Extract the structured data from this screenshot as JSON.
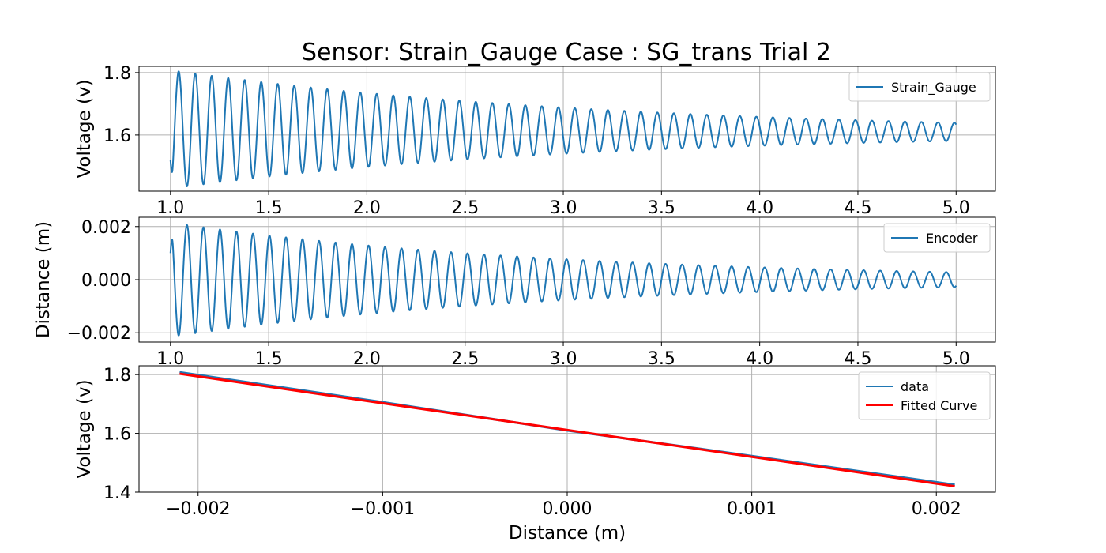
{
  "figure": {
    "title": "Sensor: Strain_Gauge Case : SG_trans Trial 2"
  },
  "chart_data": [
    {
      "type": "line",
      "ylabel": "Voltage (v)",
      "xlabel": "",
      "xlim": [
        0.84,
        5.2
      ],
      "ylim": [
        1.42,
        1.82
      ],
      "xticks": [
        "1.0",
        "1.5",
        "2.0",
        "2.5",
        "3.0",
        "3.5",
        "4.0",
        "4.5",
        "5.0"
      ],
      "yticks": [
        "1.6",
        "1.8"
      ],
      "grid": true,
      "legend_position": "top-right",
      "series": [
        {
          "name": "Strain_Gauge",
          "color": "#1f77b4",
          "x_start": 1.0,
          "x_end": 5.0,
          "offset_start": 1.618,
          "offset_end": 1.61,
          "amp_start": 0.19,
          "amp_end": 0.029,
          "frequency_hz": 11.9,
          "phase_deg": -90,
          "value_at_start": 1.52
        }
      ]
    },
    {
      "type": "line",
      "ylabel": "Distance (m)",
      "xlabel": "",
      "xlim": [
        0.84,
        5.2
      ],
      "ylim": [
        -0.00235,
        0.00235
      ],
      "xticks": [
        "1.0",
        "1.5",
        "2.0",
        "2.5",
        "3.0",
        "3.5",
        "4.0",
        "4.5",
        "5.0"
      ],
      "yticks": [
        "−0.002",
        "0.000",
        "0.002"
      ],
      "grid": true,
      "legend_position": "top-right",
      "series": [
        {
          "name": "Encoder",
          "color": "#1f77b4",
          "x_start": 1.0,
          "x_end": 5.0,
          "offset_start": 0.0,
          "offset_end": 0.0,
          "amp_start": 0.00215,
          "amp_end": 0.00028,
          "frequency_hz": 11.9,
          "phase_deg": 90,
          "value_at_start": 0.001
        }
      ]
    },
    {
      "type": "line",
      "ylabel": "Voltage (v)",
      "xlabel": "Distance (m)",
      "xlim": [
        -0.00232,
        0.00232
      ],
      "ylim": [
        1.4,
        1.83
      ],
      "xticks": [
        "−0.002",
        "−0.001",
        "0.000",
        "0.001",
        "0.002"
      ],
      "yticks": [
        "1.4",
        "1.6",
        "1.8"
      ],
      "grid": true,
      "legend_position": "top-right",
      "series": [
        {
          "name": "data",
          "color": "#1f77b4",
          "x": [
            -0.0021,
            -0.001,
            0.0,
            0.001,
            0.0021
          ],
          "y": [
            1.808,
            1.706,
            1.61,
            1.523,
            1.425
          ]
        },
        {
          "name": "Fitted Curve",
          "color": "#ff0000",
          "x": [
            -0.0021,
            0.0021
          ],
          "y": [
            1.803,
            1.42
          ]
        }
      ]
    }
  ]
}
